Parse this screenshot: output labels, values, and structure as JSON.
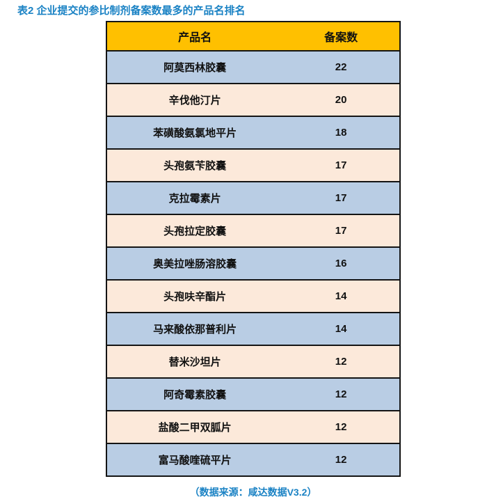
{
  "page": {
    "title": "表2 企业提交的参比制剂备案数最多的产品名排名",
    "source_note": "（数据来源：咸达数据V3.2）"
  },
  "table": {
    "columns": [
      "产品名",
      "备案数"
    ],
    "rows": [
      {
        "name": "阿莫西林胶囊",
        "count": "22"
      },
      {
        "name": "辛伐他汀片",
        "count": "20"
      },
      {
        "name": "苯磺酸氨氯地平片",
        "count": "18"
      },
      {
        "name": "头孢氨苄胶囊",
        "count": "17"
      },
      {
        "name": "克拉霉素片",
        "count": "17"
      },
      {
        "name": "头孢拉定胶囊",
        "count": "17"
      },
      {
        "name": "奥美拉唑肠溶胶囊",
        "count": "16"
      },
      {
        "name": "头孢呋辛酯片",
        "count": "14"
      },
      {
        "name": "马来酸依那普利片",
        "count": "14"
      },
      {
        "name": "替米沙坦片",
        "count": "12"
      },
      {
        "name": "阿奇霉素胶囊",
        "count": "12"
      },
      {
        "name": "盐酸二甲双胍片",
        "count": "12"
      },
      {
        "name": "富马酸喹硫平片",
        "count": "12"
      }
    ]
  },
  "colors": {
    "title": "#1a82c4",
    "header_bg": "#ffc000",
    "row_blue": "#b9cde4",
    "row_peach": "#fce9da",
    "border": "#141414",
    "source_note": "#1a82c4"
  },
  "chart_data": {
    "type": "table",
    "title": "表2 企业提交的参比制剂备案数最多的产品名排名",
    "columns": [
      "产品名",
      "备案数"
    ],
    "categories": [
      "阿莫西林胶囊",
      "辛伐他汀片",
      "苯磺酸氨氯地平片",
      "头孢氨苄胶囊",
      "克拉霉素片",
      "头孢拉定胶囊",
      "奥美拉唑肠溶胶囊",
      "头孢呋辛酯片",
      "马来酸依那普利片",
      "替米沙坦片",
      "阿奇霉素胶囊",
      "盐酸二甲双胍片",
      "富马酸喹硫平片"
    ],
    "values": [
      22,
      20,
      18,
      17,
      17,
      17,
      16,
      14,
      14,
      12,
      12,
      12,
      12
    ],
    "source": "（数据来源：咸达数据V3.2）",
    "layout_hints": {
      "header_background": "#ffc000",
      "row_alternating_backgrounds": [
        "#b9cde4",
        "#fce9da"
      ],
      "grid": "horizontal-only",
      "values_sorted": "descending"
    }
  }
}
